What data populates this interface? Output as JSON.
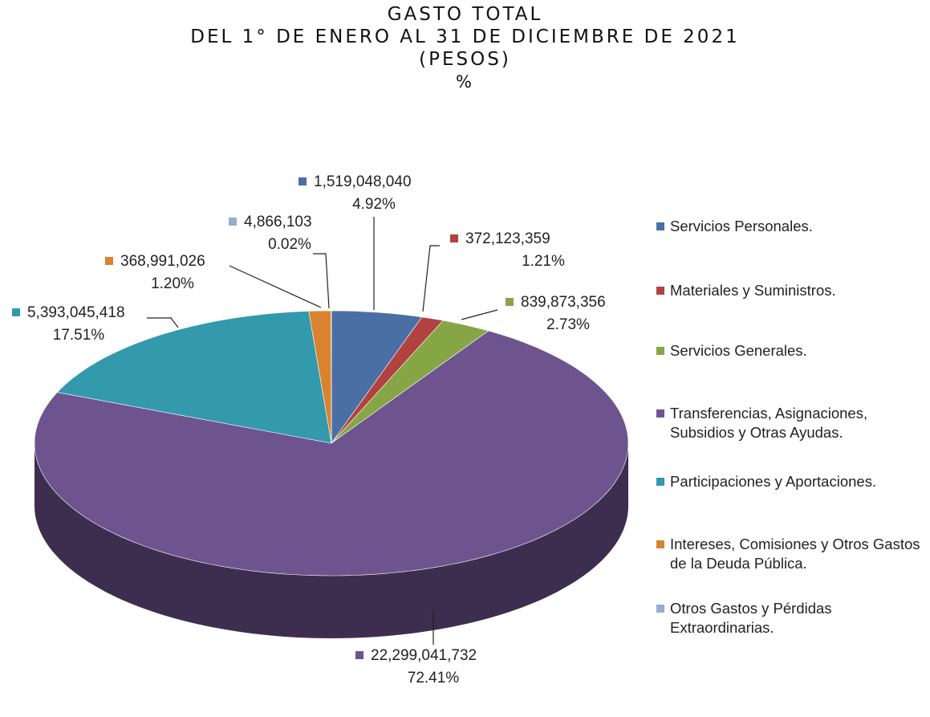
{
  "chart_data": {
    "type": "pie3d",
    "title": "GASTO TOTAL",
    "subtitle": "DEL 1° DE ENERO AL 31 DE DICIEMBRE DE 2021",
    "unit_label": "(PESOS)",
    "percent_label": "%",
    "categories": [
      "Servicios Personales.",
      "Materiales y Suministros.",
      "Servicios Generales.",
      "Transferencias, Asignaciones, Subsidios y Otras Ayudas.",
      "Participaciones y Aportaciones.",
      "Intereses, Comisiones y Otros Gastos de la Deuda Pública.",
      "Otros Gastos y Pérdidas Extraordinarias."
    ],
    "values": [
      1519048040,
      372123359,
      839873356,
      22299041732,
      5393045418,
      368991026,
      4866103
    ],
    "value_labels": [
      "1,519,048,040",
      "372,123,359",
      "839,873,356",
      "22,299,041,732",
      "5,393,045,418",
      "368,991,026",
      "4,866,103"
    ],
    "percentages": [
      4.92,
      1.21,
      2.73,
      72.41,
      17.51,
      1.2,
      0.02
    ],
    "percentage_labels": [
      "4.92%",
      "1.21%",
      "2.73%",
      "72.41%",
      "17.51%",
      "1.20%",
      "0.02%"
    ],
    "colors": [
      "#4a6fa5",
      "#b24240",
      "#86a544",
      "#6e548f",
      "#3399ad",
      "#d8832d",
      "#94acd6"
    ],
    "legend": "right"
  }
}
